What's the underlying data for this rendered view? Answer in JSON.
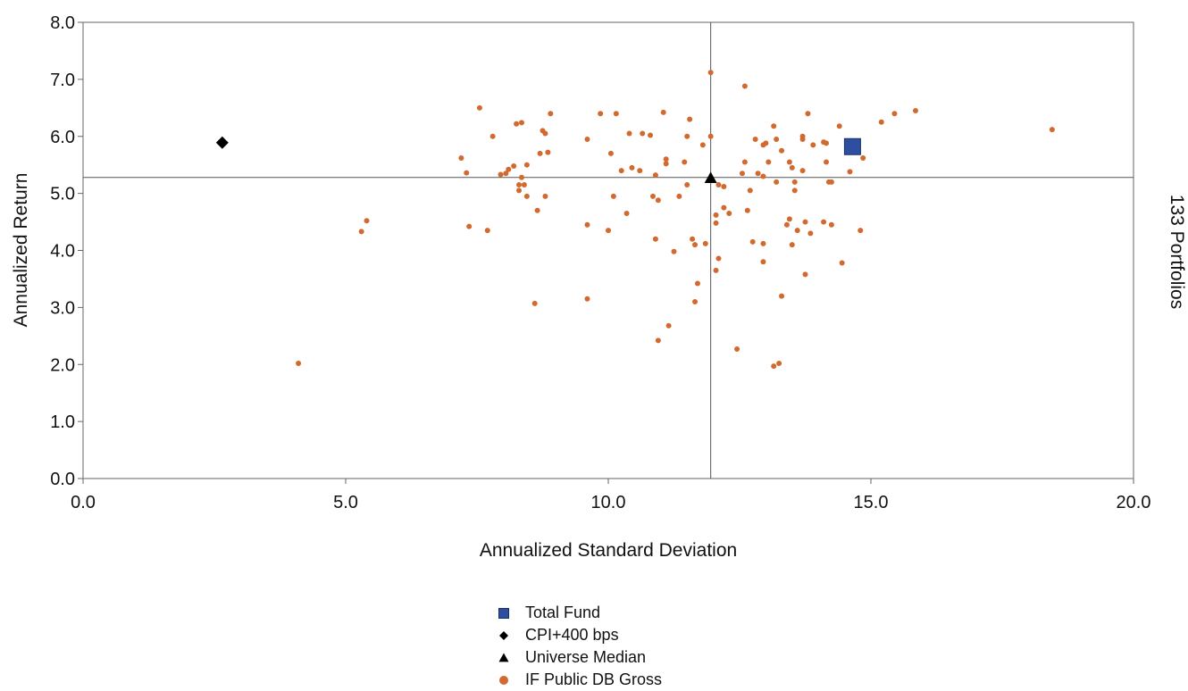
{
  "chart_data": {
    "type": "scatter",
    "title": "",
    "xlabel": "Annualized Standard Deviation",
    "ylabel": "Annualized Return",
    "right_label": "133 Portfolios",
    "xlim": [
      0,
      20
    ],
    "ylim": [
      0,
      8
    ],
    "x_ticks": [
      "0.0",
      "5.0",
      "10.0",
      "15.0",
      "20.0"
    ],
    "y_ticks": [
      "0.0",
      "1.0",
      "2.0",
      "3.0",
      "4.0",
      "5.0",
      "6.0",
      "7.0",
      "8.0"
    ],
    "grid": false,
    "reference_lines": {
      "x": 11.95,
      "y": 5.28
    },
    "legend_position": "bottom-center",
    "series": [
      {
        "name": "Total Fund",
        "marker": "square",
        "color": "#2e4fa0",
        "points": [
          [
            14.65,
            5.82
          ]
        ]
      },
      {
        "name": "CPI+400 bps",
        "marker": "diamond",
        "color": "#000000",
        "points": [
          [
            2.65,
            5.89
          ]
        ]
      },
      {
        "name": "Universe Median",
        "marker": "triangle",
        "color": "#000000",
        "points": [
          [
            11.95,
            5.27
          ]
        ]
      },
      {
        "name": "IF Public DB Gross",
        "marker": "circle",
        "color": "#d2692e",
        "points": [
          [
            4.1,
            2.02
          ],
          [
            5.3,
            4.33
          ],
          [
            5.4,
            4.52
          ],
          [
            7.2,
            5.62
          ],
          [
            7.3,
            5.36
          ],
          [
            7.35,
            4.42
          ],
          [
            7.55,
            6.5
          ],
          [
            7.7,
            4.35
          ],
          [
            7.8,
            6.0
          ],
          [
            7.95,
            5.33
          ],
          [
            8.05,
            5.35
          ],
          [
            8.1,
            5.42
          ],
          [
            8.2,
            5.48
          ],
          [
            8.25,
            6.22
          ],
          [
            8.3,
            5.15
          ],
          [
            8.3,
            5.05
          ],
          [
            8.35,
            6.24
          ],
          [
            8.35,
            5.28
          ],
          [
            8.4,
            5.15
          ],
          [
            8.45,
            5.5
          ],
          [
            8.45,
            4.95
          ],
          [
            8.6,
            3.07
          ],
          [
            8.65,
            4.7
          ],
          [
            8.7,
            5.7
          ],
          [
            8.75,
            6.1
          ],
          [
            8.8,
            6.05
          ],
          [
            8.8,
            4.95
          ],
          [
            8.85,
            5.72
          ],
          [
            8.9,
            6.4
          ],
          [
            9.6,
            5.95
          ],
          [
            9.6,
            3.15
          ],
          [
            9.6,
            4.45
          ],
          [
            9.85,
            6.4
          ],
          [
            10.0,
            4.35
          ],
          [
            10.05,
            5.7
          ],
          [
            10.1,
            4.95
          ],
          [
            10.15,
            6.4
          ],
          [
            10.25,
            5.4
          ],
          [
            10.35,
            4.65
          ],
          [
            10.4,
            6.05
          ],
          [
            10.45,
            5.45
          ],
          [
            10.6,
            5.4
          ],
          [
            10.65,
            6.05
          ],
          [
            10.8,
            6.02
          ],
          [
            10.85,
            4.95
          ],
          [
            10.9,
            5.32
          ],
          [
            10.9,
            4.2
          ],
          [
            10.95,
            4.88
          ],
          [
            10.95,
            2.42
          ],
          [
            11.05,
            6.42
          ],
          [
            11.1,
            5.6
          ],
          [
            11.1,
            5.52
          ],
          [
            11.15,
            2.68
          ],
          [
            11.25,
            3.98
          ],
          [
            11.35,
            4.95
          ],
          [
            11.45,
            5.55
          ],
          [
            11.5,
            5.15
          ],
          [
            11.5,
            6.0
          ],
          [
            11.55,
            6.3
          ],
          [
            11.6,
            4.2
          ],
          [
            11.65,
            3.1
          ],
          [
            11.65,
            4.1
          ],
          [
            11.7,
            3.42
          ],
          [
            11.8,
            5.85
          ],
          [
            11.85,
            4.12
          ],
          [
            11.95,
            6.0
          ],
          [
            11.95,
            7.12
          ],
          [
            12.05,
            4.62
          ],
          [
            12.05,
            4.48
          ],
          [
            12.05,
            3.65
          ],
          [
            12.1,
            3.86
          ],
          [
            12.1,
            5.15
          ],
          [
            12.2,
            5.12
          ],
          [
            12.3,
            4.65
          ],
          [
            12.45,
            2.27
          ],
          [
            12.55,
            5.35
          ],
          [
            12.6,
            6.88
          ],
          [
            12.6,
            5.55
          ],
          [
            12.65,
            4.7
          ],
          [
            12.7,
            5.05
          ],
          [
            12.75,
            4.15
          ],
          [
            12.8,
            5.95
          ],
          [
            12.85,
            5.35
          ],
          [
            12.95,
            5.85
          ],
          [
            12.95,
            5.3
          ],
          [
            12.95,
            4.12
          ],
          [
            12.95,
            3.8
          ],
          [
            13.0,
            5.88
          ],
          [
            13.05,
            5.55
          ],
          [
            13.15,
            6.18
          ],
          [
            13.15,
            1.97
          ],
          [
            13.2,
            5.95
          ],
          [
            13.2,
            5.2
          ],
          [
            13.25,
            2.02
          ],
          [
            13.3,
            5.75
          ],
          [
            13.3,
            3.2
          ],
          [
            13.4,
            4.45
          ],
          [
            13.45,
            5.55
          ],
          [
            13.45,
            4.55
          ],
          [
            13.5,
            5.45
          ],
          [
            13.5,
            4.1
          ],
          [
            13.55,
            5.2
          ],
          [
            13.55,
            5.05
          ],
          [
            13.6,
            4.35
          ],
          [
            13.7,
            5.95
          ],
          [
            13.7,
            6.0
          ],
          [
            13.7,
            5.4
          ],
          [
            13.75,
            4.5
          ],
          [
            13.75,
            3.58
          ],
          [
            13.8,
            6.4
          ],
          [
            13.85,
            4.3
          ],
          [
            13.9,
            5.85
          ],
          [
            14.1,
            4.5
          ],
          [
            14.1,
            5.9
          ],
          [
            14.15,
            5.88
          ],
          [
            14.15,
            5.55
          ],
          [
            14.2,
            5.2
          ],
          [
            14.25,
            4.45
          ],
          [
            14.25,
            5.2
          ],
          [
            14.4,
            6.18
          ],
          [
            14.45,
            3.78
          ],
          [
            14.6,
            5.38
          ],
          [
            14.8,
            4.35
          ],
          [
            14.85,
            5.62
          ],
          [
            15.2,
            6.25
          ],
          [
            15.45,
            6.4
          ],
          [
            15.85,
            6.45
          ],
          [
            18.45,
            6.12
          ],
          [
            12.2,
            4.75
          ]
        ]
      }
    ]
  }
}
